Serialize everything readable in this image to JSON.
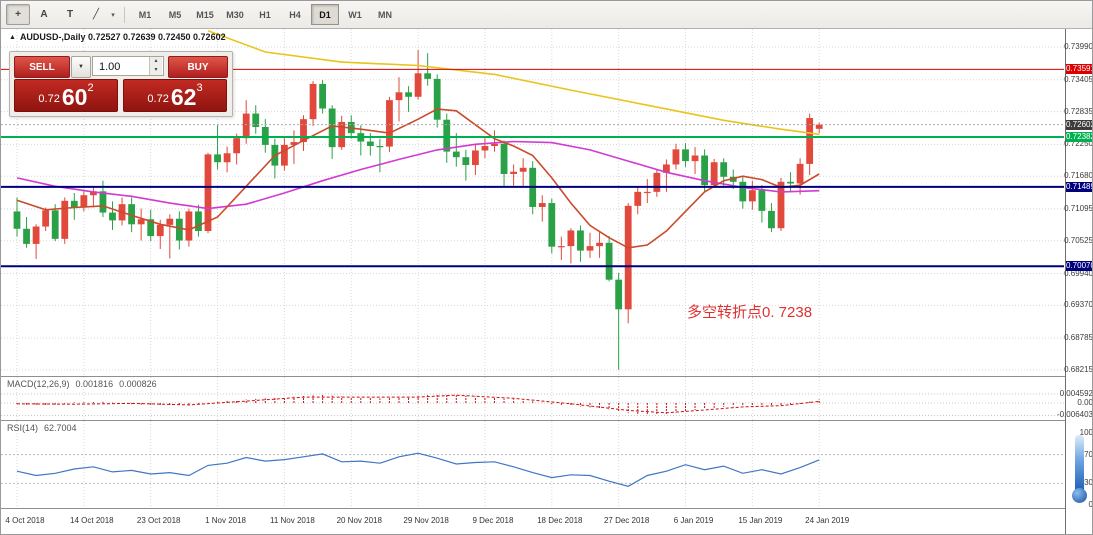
{
  "toolbar": {
    "tools": [
      {
        "name": "crosshair",
        "glyph": "+"
      },
      {
        "name": "text-annotation",
        "glyph": "A"
      },
      {
        "name": "text-label",
        "glyph": "T"
      },
      {
        "name": "draw-objects",
        "glyph": "╱"
      }
    ],
    "draw_dropdown_glyph": "▾",
    "timeframes": [
      "M1",
      "M5",
      "M15",
      "M30",
      "H1",
      "H4",
      "D1",
      "W1",
      "MN"
    ],
    "active_timeframe": "D1"
  },
  "chart": {
    "title": "AUDUSD-,Daily 0.72527 0.72639 0.72450 0.72602"
  },
  "trade_panel": {
    "sell_label": "SELL",
    "buy_label": "BUY",
    "volume": "1.00",
    "dropdown_glyph": "▼",
    "spin_up": "▴",
    "spin_down": "▾",
    "sell_price": {
      "prefix": "0.72",
      "big": "60",
      "sup": "2"
    },
    "buy_price": {
      "prefix": "0.72",
      "big": "62",
      "sup": "3"
    }
  },
  "annotation": {
    "text": "多空转折点0. 7238"
  },
  "chart_data": {
    "type": "candlestick",
    "symbol": "AUDUSD-",
    "timeframe": "Daily",
    "ohlc_current": {
      "open": 0.72527,
      "high": 0.72639,
      "low": 0.7245,
      "close": 0.72602
    },
    "current_price": 0.72602,
    "current_price_label": "0.72602",
    "price_axis": [
      "0.73990",
      "0.73405",
      "0.72835",
      "0.72250",
      "0.71680",
      "0.71095",
      "0.70525",
      "0.69940",
      "0.69370",
      "0.68785",
      "0.68215"
    ],
    "hlines": [
      {
        "price": 0.73591,
        "label": "0.73591",
        "color": "#dd0000",
        "width": 1
      },
      {
        "price": 0.72382,
        "label": "0.72382",
        "color": "#00b050",
        "width": 2
      },
      {
        "price": 0.71489,
        "label": "0.71489",
        "color": "#00007f",
        "width": 2
      },
      {
        "price": 0.7007,
        "label": "0.70070",
        "color": "#00007f",
        "width": 2
      }
    ],
    "date_ticks": [
      {
        "i": 0,
        "label": "4 Oct 2018"
      },
      {
        "i": 7,
        "label": "14 Oct 2018"
      },
      {
        "i": 14,
        "label": "23 Oct 2018"
      },
      {
        "i": 21,
        "label": "1 Nov 2018"
      },
      {
        "i": 28,
        "label": "11 Nov 2018"
      },
      {
        "i": 35,
        "label": "20 Nov 2018"
      },
      {
        "i": 42,
        "label": "29 Nov 2018"
      },
      {
        "i": 49,
        "label": "9 Dec 2018"
      },
      {
        "i": 56,
        "label": "18 Dec 2018"
      },
      {
        "i": 63,
        "label": "27 Dec 2018"
      },
      {
        "i": 70,
        "label": "6 Jan 2019"
      },
      {
        "i": 77,
        "label": "15 Jan 2019"
      },
      {
        "i": 84,
        "label": "24 Jan 2019"
      }
    ],
    "candles": [
      [
        0.7105,
        0.713,
        0.706,
        0.7074
      ],
      [
        0.7074,
        0.7095,
        0.704,
        0.7047
      ],
      [
        0.7047,
        0.7082,
        0.702,
        0.7078
      ],
      [
        0.7078,
        0.7112,
        0.707,
        0.7107
      ],
      [
        0.7107,
        0.7118,
        0.7052,
        0.7056
      ],
      [
        0.7056,
        0.713,
        0.7047,
        0.7124
      ],
      [
        0.7124,
        0.7138,
        0.709,
        0.7112
      ],
      [
        0.7112,
        0.7144,
        0.7105,
        0.7134
      ],
      [
        0.7134,
        0.715,
        0.7112,
        0.7141
      ],
      [
        0.7141,
        0.716,
        0.7095,
        0.7103
      ],
      [
        0.7103,
        0.7123,
        0.7072,
        0.7089
      ],
      [
        0.7089,
        0.713,
        0.708,
        0.7118
      ],
      [
        0.7118,
        0.713,
        0.7068,
        0.7082
      ],
      [
        0.7082,
        0.711,
        0.7053,
        0.7091
      ],
      [
        0.7091,
        0.7108,
        0.7052,
        0.7061
      ],
      [
        0.7061,
        0.709,
        0.7038,
        0.7081
      ],
      [
        0.7081,
        0.71,
        0.7021,
        0.7092
      ],
      [
        0.7092,
        0.7105,
        0.7037,
        0.7053
      ],
      [
        0.7053,
        0.711,
        0.7042,
        0.7105
      ],
      [
        0.7105,
        0.7117,
        0.706,
        0.707
      ],
      [
        0.707,
        0.721,
        0.7066,
        0.7207
      ],
      [
        0.7207,
        0.7259,
        0.718,
        0.7193
      ],
      [
        0.7193,
        0.7221,
        0.7175,
        0.7209
      ],
      [
        0.7209,
        0.7244,
        0.7189,
        0.7236
      ],
      [
        0.7236,
        0.7304,
        0.7226,
        0.728
      ],
      [
        0.728,
        0.7295,
        0.7244,
        0.7256
      ],
      [
        0.7256,
        0.727,
        0.721,
        0.7224
      ],
      [
        0.7224,
        0.7235,
        0.7164,
        0.7187
      ],
      [
        0.7187,
        0.7236,
        0.7178,
        0.7224
      ],
      [
        0.7224,
        0.725,
        0.719,
        0.7229
      ],
      [
        0.7229,
        0.7277,
        0.7213,
        0.727
      ],
      [
        0.727,
        0.7338,
        0.7258,
        0.7333
      ],
      [
        0.7333,
        0.734,
        0.728,
        0.7289
      ],
      [
        0.7289,
        0.7295,
        0.7199,
        0.722
      ],
      [
        0.722,
        0.7276,
        0.7215,
        0.7265
      ],
      [
        0.7265,
        0.7277,
        0.7235,
        0.7245
      ],
      [
        0.7245,
        0.7259,
        0.7205,
        0.723
      ],
      [
        0.723,
        0.7245,
        0.7205,
        0.7222
      ],
      [
        0.7222,
        0.7235,
        0.7175,
        0.7221
      ],
      [
        0.7221,
        0.731,
        0.7211,
        0.7304
      ],
      [
        0.7304,
        0.7345,
        0.7266,
        0.7318
      ],
      [
        0.7318,
        0.7329,
        0.7283,
        0.731
      ],
      [
        0.731,
        0.7394,
        0.7305,
        0.7352
      ],
      [
        0.7352,
        0.7388,
        0.733,
        0.7342
      ],
      [
        0.7342,
        0.735,
        0.7255,
        0.7269
      ],
      [
        0.7269,
        0.728,
        0.7192,
        0.7212
      ],
      [
        0.7212,
        0.7245,
        0.7185,
        0.7202
      ],
      [
        0.7202,
        0.7215,
        0.716,
        0.7188
      ],
      [
        0.7188,
        0.7225,
        0.717,
        0.7214
      ],
      [
        0.7214,
        0.7238,
        0.72,
        0.7222
      ],
      [
        0.7222,
        0.725,
        0.7212,
        0.7226
      ],
      [
        0.7226,
        0.7232,
        0.715,
        0.7172
      ],
      [
        0.7172,
        0.7189,
        0.7151,
        0.7176
      ],
      [
        0.7176,
        0.72,
        0.715,
        0.7183
      ],
      [
        0.7183,
        0.7195,
        0.71,
        0.7113
      ],
      [
        0.7113,
        0.7134,
        0.7087,
        0.712
      ],
      [
        0.712,
        0.7128,
        0.703,
        0.7042
      ],
      [
        0.7042,
        0.706,
        0.7018,
        0.7043
      ],
      [
        0.7043,
        0.7075,
        0.7012,
        0.7071
      ],
      [
        0.7071,
        0.708,
        0.7015,
        0.7035
      ],
      [
        0.7035,
        0.7067,
        0.7022,
        0.7043
      ],
      [
        0.7043,
        0.707,
        0.7022,
        0.7049
      ],
      [
        0.7049,
        0.7061,
        0.698,
        0.6983
      ],
      [
        0.6983,
        0.6995,
        0.6822,
        0.693
      ],
      [
        0.693,
        0.712,
        0.6905,
        0.7115
      ],
      [
        0.7115,
        0.715,
        0.71,
        0.714
      ],
      [
        0.714,
        0.7163,
        0.712,
        0.714
      ],
      [
        0.714,
        0.718,
        0.7131,
        0.7174
      ],
      [
        0.7174,
        0.7198,
        0.714,
        0.7189
      ],
      [
        0.7189,
        0.7226,
        0.718,
        0.7216
      ],
      [
        0.7216,
        0.7227,
        0.7185,
        0.7195
      ],
      [
        0.7195,
        0.722,
        0.7172,
        0.7205
      ],
      [
        0.7205,
        0.7216,
        0.7141,
        0.7152
      ],
      [
        0.7152,
        0.7199,
        0.7147,
        0.7193
      ],
      [
        0.7193,
        0.72,
        0.715,
        0.7167
      ],
      [
        0.7167,
        0.718,
        0.7145,
        0.7158
      ],
      [
        0.7158,
        0.7168,
        0.711,
        0.7123
      ],
      [
        0.7123,
        0.716,
        0.7108,
        0.7143
      ],
      [
        0.7143,
        0.7152,
        0.7085,
        0.7106
      ],
      [
        0.7106,
        0.712,
        0.7068,
        0.7075
      ],
      [
        0.7075,
        0.7165,
        0.707,
        0.7158
      ],
      [
        0.7158,
        0.7175,
        0.714,
        0.7155
      ],
      [
        0.7155,
        0.72,
        0.7135,
        0.719
      ],
      [
        0.719,
        0.728,
        0.717,
        0.7272
      ],
      [
        0.72527,
        0.72639,
        0.7245,
        0.72602
      ]
    ],
    "ma": {
      "red": [
        [
          0,
          0.7125
        ],
        [
          3,
          0.7108
        ],
        [
          6,
          0.7112
        ],
        [
          9,
          0.7115
        ],
        [
          12,
          0.7098
        ],
        [
          15,
          0.7082
        ],
        [
          18,
          0.7072
        ],
        [
          21,
          0.7095
        ],
        [
          24,
          0.715
        ],
        [
          27,
          0.7205
        ],
        [
          30,
          0.7232
        ],
        [
          33,
          0.7258
        ],
        [
          36,
          0.7252
        ],
        [
          39,
          0.7245
        ],
        [
          42,
          0.727
        ],
        [
          44,
          0.7288
        ],
        [
          46,
          0.7285
        ],
        [
          48,
          0.726
        ],
        [
          50,
          0.7235
        ],
        [
          52,
          0.7222
        ],
        [
          54,
          0.7205
        ],
        [
          56,
          0.7165
        ],
        [
          58,
          0.712
        ],
        [
          60,
          0.708
        ],
        [
          62,
          0.7058
        ],
        [
          64,
          0.704
        ],
        [
          66,
          0.7045
        ],
        [
          68,
          0.707
        ],
        [
          70,
          0.7105
        ],
        [
          72,
          0.714
        ],
        [
          74,
          0.716
        ],
        [
          76,
          0.7168
        ],
        [
          78,
          0.7162
        ],
        [
          80,
          0.7148
        ],
        [
          82,
          0.7152
        ],
        [
          84,
          0.7172
        ]
      ],
      "magenta": [
        [
          0,
          0.7165
        ],
        [
          4,
          0.715
        ],
        [
          8,
          0.714
        ],
        [
          12,
          0.7132
        ],
        [
          16,
          0.712
        ],
        [
          20,
          0.711
        ],
        [
          24,
          0.7118
        ],
        [
          28,
          0.7138
        ],
        [
          32,
          0.716
        ],
        [
          36,
          0.718
        ],
        [
          40,
          0.7198
        ],
        [
          44,
          0.7215
        ],
        [
          48,
          0.7225
        ],
        [
          52,
          0.723
        ],
        [
          56,
          0.7228
        ],
        [
          60,
          0.7215
        ],
        [
          64,
          0.7195
        ],
        [
          68,
          0.7175
        ],
        [
          72,
          0.716
        ],
        [
          76,
          0.7148
        ],
        [
          80,
          0.714
        ],
        [
          84,
          0.7142
        ]
      ],
      "yellow": [
        [
          20,
          0.7428
        ],
        [
          26,
          0.739
        ],
        [
          34,
          0.7372
        ],
        [
          42,
          0.7366
        ],
        [
          50,
          0.735
        ],
        [
          58,
          0.7322
        ],
        [
          66,
          0.7295
        ],
        [
          74,
          0.7268
        ],
        [
          80,
          0.7252
        ],
        [
          84,
          0.7243
        ]
      ]
    },
    "macd": {
      "label": "MACD(12,26,9)",
      "value_main": "0.001816",
      "value_signal": "0.000826",
      "axis": [
        {
          "label": "0.004592",
          "value": 0.004592
        },
        {
          "label": "0.00",
          "value": 0
        },
        {
          "label": "-0.006403",
          "value": -0.006403
        }
      ],
      "hist": [
        [
          0,
          -0.0006
        ],
        [
          3,
          -0.0014
        ],
        [
          6,
          0.0003
        ],
        [
          9,
          0.0006
        ],
        [
          12,
          -0.0006
        ],
        [
          15,
          -0.0014
        ],
        [
          18,
          -0.001
        ],
        [
          21,
          0.0006
        ],
        [
          24,
          0.0018
        ],
        [
          28,
          0.003
        ],
        [
          32,
          0.0042
        ],
        [
          35,
          0.003
        ],
        [
          38,
          0.0024
        ],
        [
          41,
          0.003
        ],
        [
          44,
          0.0046
        ],
        [
          47,
          0.0036
        ],
        [
          50,
          0.0026
        ],
        [
          53,
          0.0016
        ],
        [
          56,
          -0.0006
        ],
        [
          59,
          -0.0018
        ],
        [
          62,
          -0.0032
        ],
        [
          64,
          -0.005
        ],
        [
          66,
          -0.0062
        ],
        [
          68,
          -0.0056
        ],
        [
          70,
          -0.0042
        ],
        [
          72,
          -0.003
        ],
        [
          74,
          -0.002
        ],
        [
          76,
          -0.0014
        ],
        [
          78,
          -0.0011
        ],
        [
          80,
          -0.0013
        ],
        [
          82,
          -0.0004
        ],
        [
          84,
          0.0018
        ]
      ],
      "signal": [
        [
          0,
          -0.0004
        ],
        [
          6,
          -0.0006
        ],
        [
          12,
          -0.0002
        ],
        [
          18,
          -0.001
        ],
        [
          24,
          0.001
        ],
        [
          30,
          0.003
        ],
        [
          36,
          0.003
        ],
        [
          42,
          0.003
        ],
        [
          46,
          0.004
        ],
        [
          52,
          0.0024
        ],
        [
          58,
          -0.0004
        ],
        [
          64,
          -0.0038
        ],
        [
          68,
          -0.005
        ],
        [
          72,
          -0.0036
        ],
        [
          76,
          -0.002
        ],
        [
          80,
          -0.0014
        ],
        [
          84,
          0.0008
        ]
      ]
    },
    "rsi": {
      "label": "RSI(14)",
      "value": "62.7004",
      "axis": [
        100,
        70,
        30,
        0
      ],
      "levels": [
        70,
        30
      ],
      "points": [
        [
          0,
          47
        ],
        [
          2,
          41
        ],
        [
          4,
          44
        ],
        [
          6,
          50
        ],
        [
          8,
          53
        ],
        [
          10,
          46
        ],
        [
          12,
          48
        ],
        [
          14,
          43
        ],
        [
          16,
          45
        ],
        [
          18,
          41
        ],
        [
          20,
          55
        ],
        [
          22,
          58
        ],
        [
          24,
          66
        ],
        [
          26,
          61
        ],
        [
          28,
          63
        ],
        [
          30,
          67
        ],
        [
          32,
          71
        ],
        [
          34,
          60
        ],
        [
          36,
          61
        ],
        [
          38,
          58
        ],
        [
          40,
          67
        ],
        [
          42,
          72
        ],
        [
          44,
          65
        ],
        [
          46,
          57
        ],
        [
          48,
          59
        ],
        [
          50,
          60
        ],
        [
          52,
          53
        ],
        [
          54,
          45
        ],
        [
          56,
          38
        ],
        [
          58,
          42
        ],
        [
          60,
          41
        ],
        [
          62,
          33
        ],
        [
          64,
          26
        ],
        [
          66,
          41
        ],
        [
          68,
          47
        ],
        [
          70,
          56
        ],
        [
          72,
          49
        ],
        [
          74,
          54
        ],
        [
          76,
          44
        ],
        [
          78,
          49
        ],
        [
          80,
          43
        ],
        [
          82,
          52
        ],
        [
          84,
          62.7
        ]
      ]
    },
    "colors": {
      "bull": "#e0493b",
      "bear": "#2aa146",
      "ma_red": "#cb4a2c",
      "ma_magenta": "#d23ad2",
      "ma_yellow": "#e9c41a",
      "macd": "#cc1111",
      "rsi": "#4076c4",
      "grid": "#d8d8d8",
      "bid_label_bg": "#3c3c3c"
    }
  }
}
